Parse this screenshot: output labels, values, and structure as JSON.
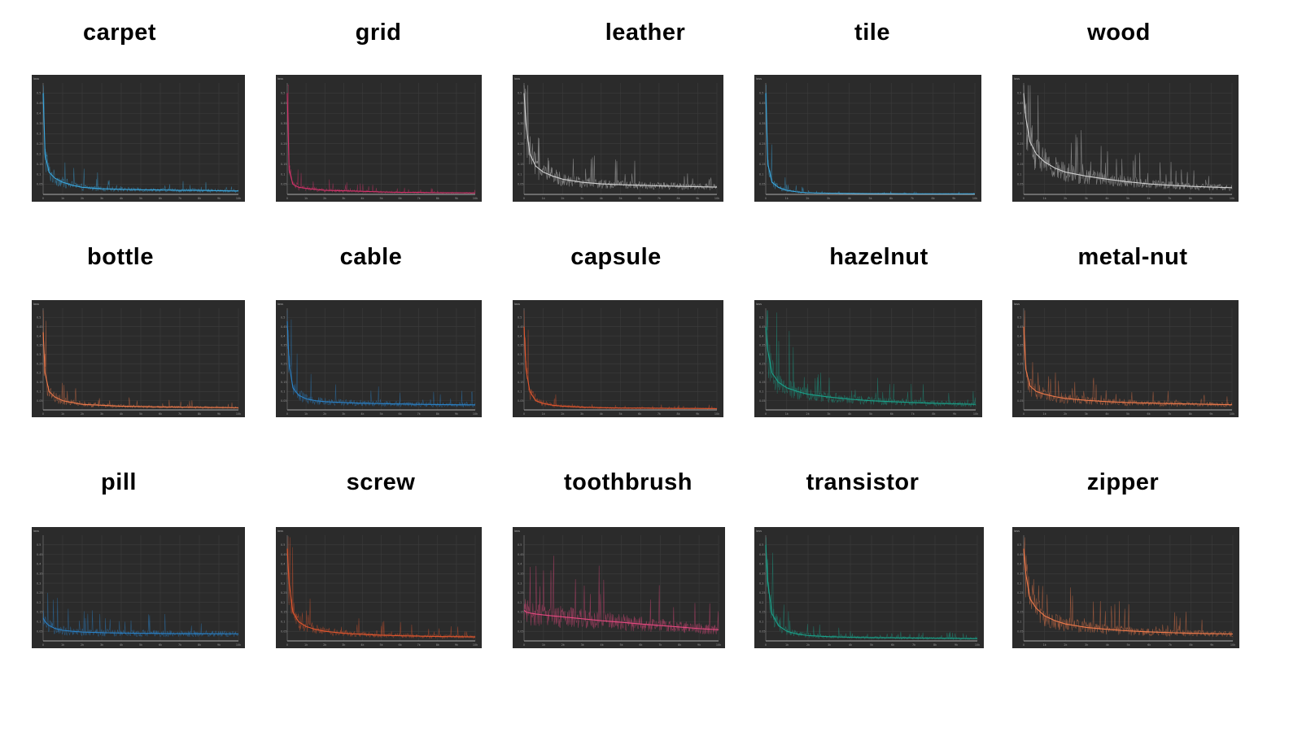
{
  "figure": {
    "ylabel": "loss",
    "y_ticks": [
      "0.5",
      "0.45",
      "0.4",
      "0.35",
      "0.3",
      "0.25",
      "0.2",
      "0.15",
      "0.1",
      "0.05"
    ],
    "x_ticks": [
      "0",
      "1k",
      "2k",
      "3k",
      "4k",
      "5k",
      "6k",
      "7k",
      "8k",
      "9k",
      "10k"
    ]
  },
  "chart_data": [
    {
      "type": "line",
      "title": "carpet",
      "color": "#3aa8e0",
      "ylim": [
        0,
        0.55
      ],
      "xlim": [
        0,
        10000
      ],
      "x": [
        0,
        100,
        300,
        600,
        1000,
        1500,
        2000,
        3000,
        4000,
        5000,
        6000,
        7000,
        8000,
        9000,
        10000
      ],
      "values": [
        0.5,
        0.2,
        0.11,
        0.08,
        0.06,
        0.045,
        0.035,
        0.028,
        0.025,
        0.023,
        0.022,
        0.02,
        0.02,
        0.018,
        0.017
      ]
    },
    {
      "type": "line",
      "title": "grid",
      "color": "#d6336c",
      "ylim": [
        0,
        0.55
      ],
      "xlim": [
        0,
        10000
      ],
      "x": [
        0,
        100,
        300,
        600,
        1000,
        1500,
        2000,
        3000,
        4000,
        5000,
        6000,
        7000,
        8000,
        9000,
        10000
      ],
      "values": [
        0.5,
        0.12,
        0.05,
        0.035,
        0.03,
        0.025,
        0.02,
        0.018,
        0.015,
        0.012,
        0.01,
        0.01,
        0.008,
        0.008,
        0.007
      ]
    },
    {
      "type": "line",
      "title": "leather",
      "color": "#d0d0d0",
      "ylim": [
        0,
        0.55
      ],
      "xlim": [
        0,
        10000
      ],
      "x": [
        0,
        100,
        300,
        600,
        1000,
        1500,
        2000,
        3000,
        4000,
        5000,
        6000,
        7000,
        8000,
        9000,
        10000
      ],
      "values": [
        0.5,
        0.35,
        0.2,
        0.14,
        0.11,
        0.09,
        0.075,
        0.06,
        0.052,
        0.048,
        0.045,
        0.042,
        0.04,
        0.038,
        0.036
      ]
    },
    {
      "type": "line",
      "title": "tile",
      "color": "#3aa8e0",
      "ylim": [
        0,
        0.55
      ],
      "xlim": [
        0,
        10000
      ],
      "x": [
        0,
        100,
        300,
        600,
        1000,
        1500,
        2000,
        3000,
        4000,
        5000,
        6000,
        7000,
        8000,
        9000,
        10000
      ],
      "values": [
        0.5,
        0.15,
        0.06,
        0.035,
        0.02,
        0.012,
        0.008,
        0.006,
        0.005,
        0.004,
        0.004,
        0.003,
        0.003,
        0.003,
        0.003
      ]
    },
    {
      "type": "line",
      "title": "wood",
      "color": "#d0d0d0",
      "ylim": [
        0,
        0.55
      ],
      "xlim": [
        0,
        10000
      ],
      "x": [
        0,
        100,
        300,
        600,
        1000,
        1500,
        2000,
        3000,
        4000,
        5000,
        6000,
        7000,
        8000,
        9000,
        10000
      ],
      "values": [
        0.5,
        0.38,
        0.26,
        0.2,
        0.16,
        0.13,
        0.11,
        0.09,
        0.075,
        0.062,
        0.052,
        0.045,
        0.04,
        0.036,
        0.033
      ]
    },
    {
      "type": "line",
      "title": "bottle",
      "color": "#ef7a4b",
      "ylim": [
        0,
        0.55
      ],
      "xlim": [
        0,
        10000
      ],
      "x": [
        0,
        100,
        300,
        600,
        1000,
        1500,
        2000,
        3000,
        4000,
        5000,
        6000,
        7000,
        8000,
        9000,
        10000
      ],
      "values": [
        0.42,
        0.2,
        0.1,
        0.07,
        0.05,
        0.04,
        0.03,
        0.025,
        0.02,
        0.018,
        0.016,
        0.015,
        0.014,
        0.013,
        0.012
      ]
    },
    {
      "type": "line",
      "title": "cable",
      "color": "#2a82c8",
      "ylim": [
        0,
        0.55
      ],
      "xlim": [
        0,
        10000
      ],
      "x": [
        0,
        100,
        300,
        600,
        1000,
        1500,
        2000,
        3000,
        4000,
        5000,
        6000,
        7000,
        8000,
        9000,
        10000
      ],
      "values": [
        0.48,
        0.25,
        0.12,
        0.08,
        0.06,
        0.05,
        0.045,
        0.04,
        0.036,
        0.034,
        0.032,
        0.03,
        0.029,
        0.028,
        0.027
      ]
    },
    {
      "type": "line",
      "title": "capsule",
      "color": "#e0562e",
      "ylim": [
        0,
        0.55
      ],
      "xlim": [
        0,
        10000
      ],
      "x": [
        0,
        100,
        300,
        600,
        1000,
        1500,
        2000,
        3000,
        4000,
        5000,
        6000,
        7000,
        8000,
        9000,
        10000
      ],
      "values": [
        0.45,
        0.22,
        0.1,
        0.05,
        0.035,
        0.025,
        0.02,
        0.015,
        0.012,
        0.01,
        0.01,
        0.009,
        0.008,
        0.008,
        0.007
      ]
    },
    {
      "type": "line",
      "title": "hazelnut",
      "color": "#1aa28a",
      "ylim": [
        0,
        0.55
      ],
      "xlim": [
        0,
        10000
      ],
      "x": [
        0,
        100,
        300,
        600,
        1000,
        1500,
        2000,
        3000,
        4000,
        5000,
        6000,
        7000,
        8000,
        9000,
        10000
      ],
      "values": [
        0.45,
        0.32,
        0.2,
        0.15,
        0.12,
        0.1,
        0.085,
        0.07,
        0.058,
        0.05,
        0.045,
        0.04,
        0.036,
        0.033,
        0.03
      ]
    },
    {
      "type": "line",
      "title": "metal-nut",
      "color": "#ef7a4b",
      "ylim": [
        0,
        0.55
      ],
      "xlim": [
        0,
        10000
      ],
      "x": [
        0,
        100,
        300,
        600,
        1000,
        1500,
        2000,
        3000,
        4000,
        5000,
        6000,
        7000,
        8000,
        9000,
        10000
      ],
      "values": [
        0.45,
        0.22,
        0.13,
        0.1,
        0.085,
        0.072,
        0.062,
        0.052,
        0.045,
        0.04,
        0.037,
        0.034,
        0.032,
        0.03,
        0.028
      ]
    },
    {
      "type": "line",
      "title": "pill",
      "color": "#2a82c8",
      "ylim": [
        0,
        0.55
      ],
      "xlim": [
        0,
        10000
      ],
      "x": [
        0,
        100,
        300,
        600,
        1000,
        1500,
        2000,
        3000,
        4000,
        5000,
        6000,
        7000,
        8000,
        9000,
        10000
      ],
      "values": [
        0.12,
        0.1,
        0.08,
        0.065,
        0.055,
        0.05,
        0.046,
        0.043,
        0.041,
        0.04,
        0.039,
        0.038,
        0.038,
        0.037,
        0.037
      ]
    },
    {
      "type": "line",
      "title": "screw",
      "color": "#e0562e",
      "ylim": [
        0,
        0.55
      ],
      "xlim": [
        0,
        10000
      ],
      "x": [
        0,
        100,
        300,
        600,
        1000,
        1500,
        2000,
        3000,
        4000,
        5000,
        6000,
        7000,
        8000,
        9000,
        10000
      ],
      "values": [
        0.48,
        0.3,
        0.15,
        0.1,
        0.075,
        0.06,
        0.05,
        0.04,
        0.034,
        0.03,
        0.027,
        0.025,
        0.023,
        0.022,
        0.021
      ]
    },
    {
      "type": "line",
      "title": "toothbrush",
      "color": "#e64980",
      "ylim": [
        0,
        0.55
      ],
      "xlim": [
        0,
        10000
      ],
      "x": [
        0,
        100,
        300,
        600,
        1000,
        1500,
        2000,
        3000,
        4000,
        5000,
        6000,
        7000,
        8000,
        9000,
        10000
      ],
      "values": [
        0.16,
        0.15,
        0.145,
        0.14,
        0.135,
        0.13,
        0.125,
        0.115,
        0.105,
        0.097,
        0.088,
        0.08,
        0.072,
        0.064,
        0.058
      ]
    },
    {
      "type": "line",
      "title": "transistor",
      "color": "#1aa28a",
      "ylim": [
        0,
        0.55
      ],
      "xlim": [
        0,
        10000
      ],
      "x": [
        0,
        100,
        300,
        600,
        1000,
        1500,
        2000,
        3000,
        4000,
        5000,
        6000,
        7000,
        8000,
        9000,
        10000
      ],
      "values": [
        0.5,
        0.3,
        0.14,
        0.08,
        0.05,
        0.035,
        0.028,
        0.022,
        0.019,
        0.017,
        0.016,
        0.015,
        0.014,
        0.013,
        0.012
      ]
    },
    {
      "type": "line",
      "title": "zipper",
      "color": "#ef7a4b",
      "ylim": [
        0,
        0.55
      ],
      "xlim": [
        0,
        10000
      ],
      "x": [
        0,
        100,
        300,
        600,
        1000,
        1500,
        2000,
        3000,
        4000,
        5000,
        6000,
        7000,
        8000,
        9000,
        10000
      ],
      "values": [
        0.48,
        0.35,
        0.22,
        0.17,
        0.13,
        0.105,
        0.088,
        0.07,
        0.06,
        0.052,
        0.047,
        0.043,
        0.04,
        0.038,
        0.036
      ]
    }
  ]
}
